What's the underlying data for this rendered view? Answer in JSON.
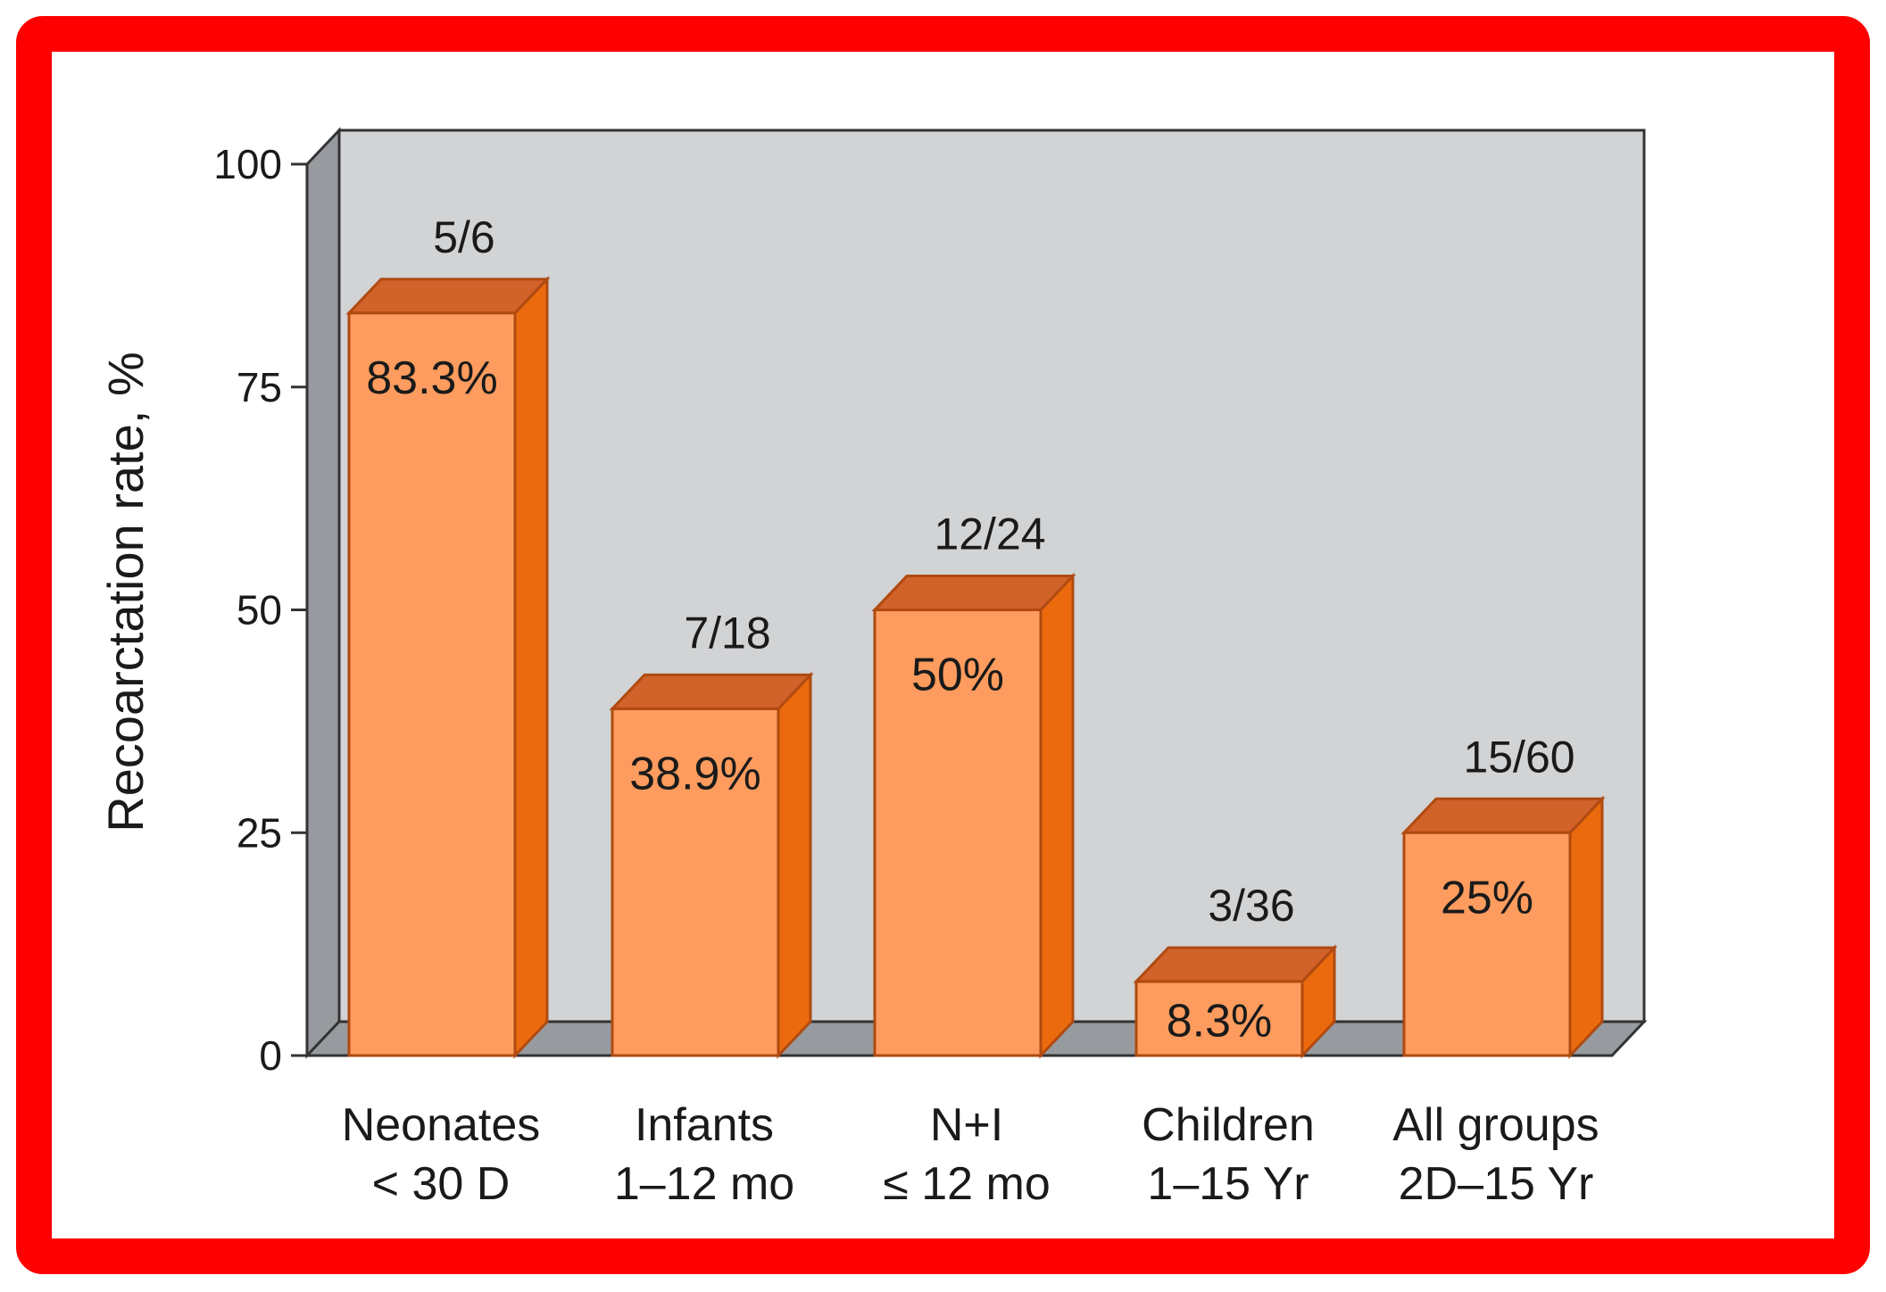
{
  "chart_data": {
    "type": "bar",
    "title": "",
    "ylabel": "Recoarctation rate, %",
    "xlabel": "",
    "ylim": [
      0,
      100
    ],
    "yticks": [
      "0",
      "25",
      "50",
      "75",
      "100"
    ],
    "categories": [
      [
        "Neonates",
        "< 30 D"
      ],
      [
        "Infants",
        "1–12 mo"
      ],
      [
        "N+I",
        "≤ 12 mo"
      ],
      [
        "Children",
        "1–15 Yr"
      ],
      [
        "All groups",
        "2D–15 Yr"
      ]
    ],
    "values": [
      83.3,
      38.9,
      50,
      8.3,
      25
    ],
    "value_labels": [
      "83.3%",
      "38.9%",
      "50%",
      "8.3%",
      "25%"
    ],
    "fraction_labels": [
      "5/6",
      "7/18",
      "12/24",
      "3/36",
      "15/60"
    ],
    "grid": false,
    "legend": "none",
    "colors": {
      "bar_front": "#fd9c5e",
      "bar_side": "#eb6a0d",
      "bar_top": "#d0622a",
      "bar_stroke": "#b04a10",
      "plot_back": "#d1d3d5",
      "plot_side": "#979a9e",
      "frame_border": "#ff0000",
      "axis_line": "#333333"
    }
  }
}
